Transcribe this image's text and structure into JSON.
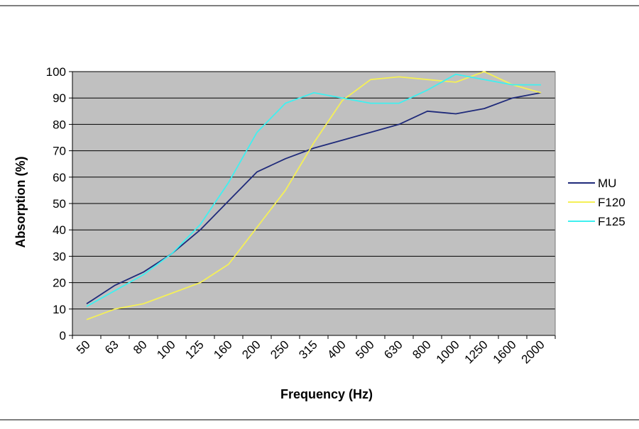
{
  "chart_data": {
    "type": "line",
    "xlabel": "Frequency (Hz)",
    "ylabel": "Absorption (%)",
    "categories": [
      "50",
      "63",
      "80",
      "100",
      "125",
      "160",
      "200",
      "250",
      "315",
      "400",
      "500",
      "630",
      "800",
      "1000",
      "1250",
      "1600",
      "2000"
    ],
    "ylim": [
      0,
      100
    ],
    "yticks": [
      0,
      10,
      20,
      30,
      40,
      50,
      60,
      70,
      80,
      90,
      100
    ],
    "grid": true,
    "legend_position": "right",
    "colors": {
      "plot_bg": "#c0c0c0",
      "grid": "#000000",
      "MU": "#1f2a7a",
      "F120": "#f5f056",
      "F125": "#3ff0f0"
    },
    "series": [
      {
        "name": "MU",
        "values": [
          12,
          19,
          24,
          31,
          40,
          51,
          62,
          67,
          71,
          74,
          77,
          80,
          85,
          84,
          86,
          90,
          92
        ]
      },
      {
        "name": "F120",
        "values": [
          6,
          10,
          12,
          16,
          20,
          27,
          41,
          55,
          73,
          89,
          97,
          98,
          97,
          96,
          100,
          95,
          92
        ]
      },
      {
        "name": "F125",
        "values": [
          11,
          17,
          23,
          31,
          42,
          58,
          77,
          88,
          92,
          90,
          88,
          88,
          93,
          99,
          97,
          95,
          95
        ]
      }
    ]
  }
}
